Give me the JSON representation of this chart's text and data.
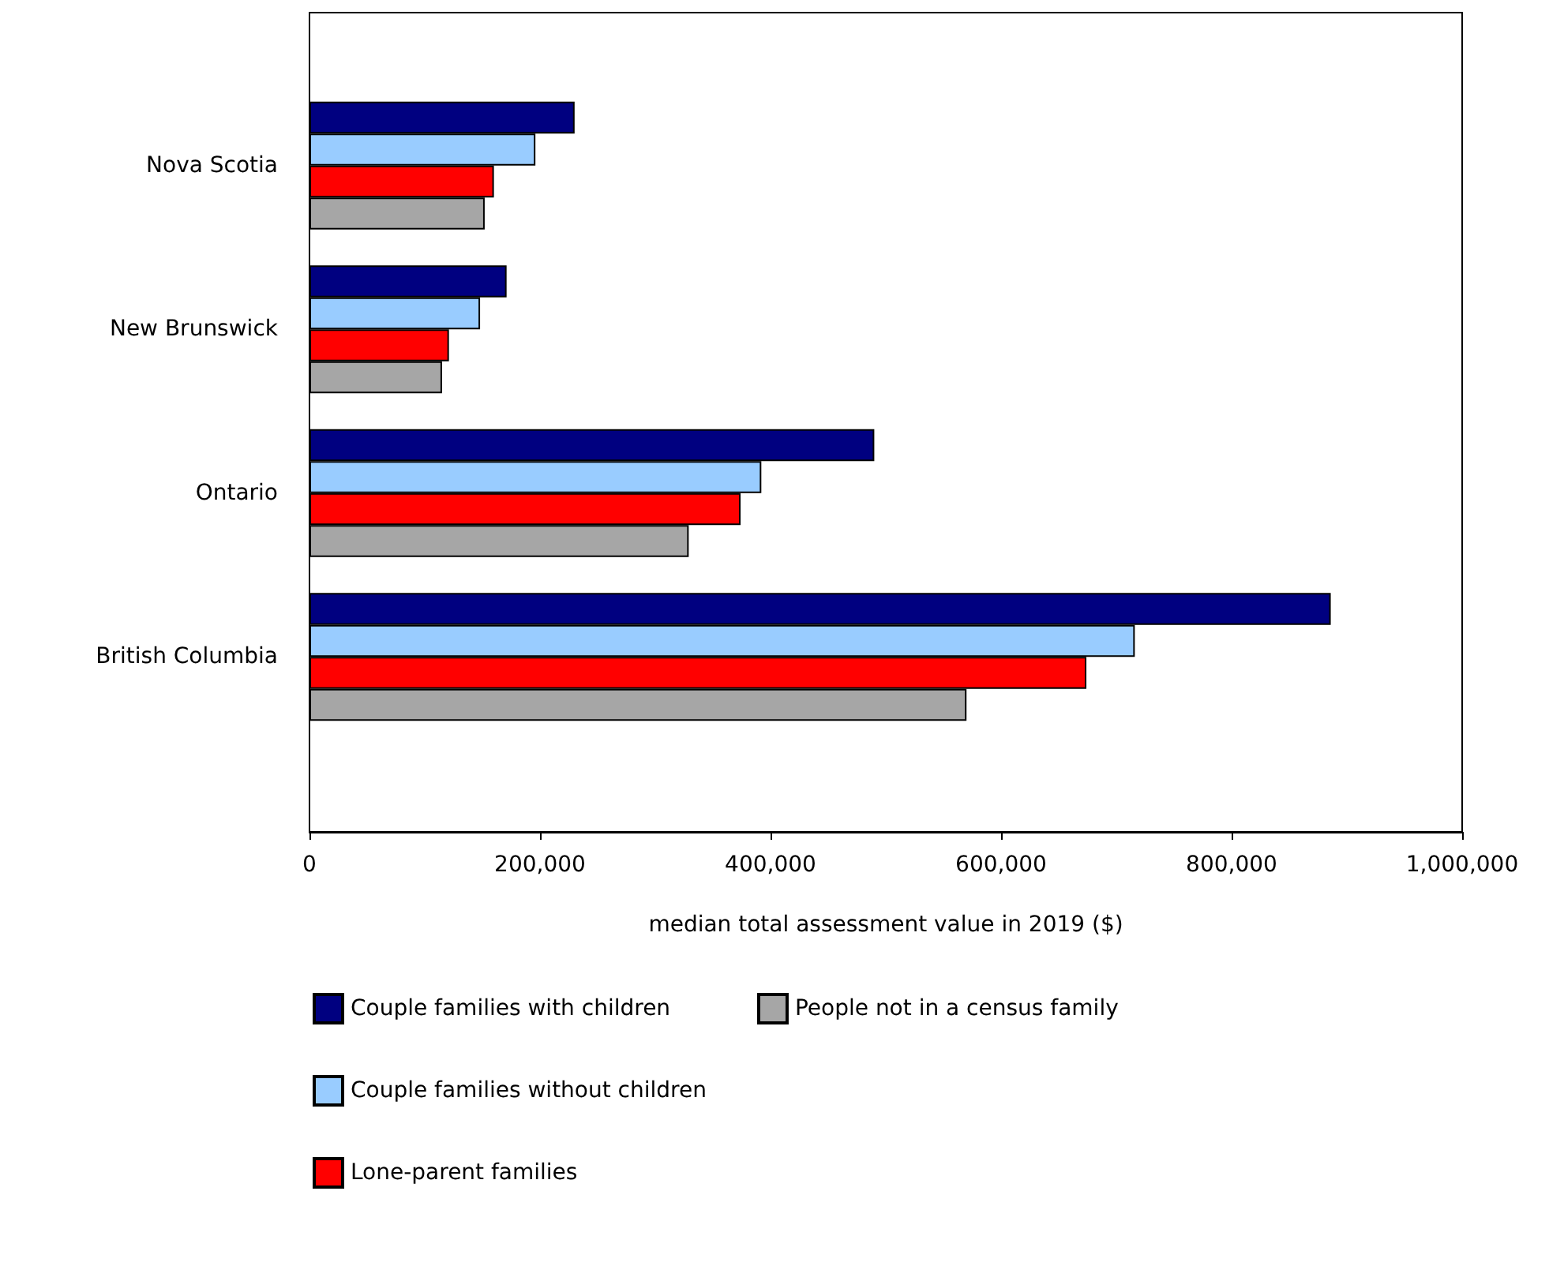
{
  "chart_data": {
    "type": "bar",
    "orientation": "horizontal",
    "xlabel": "median total assessment value in 2019 ($)",
    "categories": [
      "Nova Scotia",
      "New Brunswick",
      "Ontario",
      "British Columbia"
    ],
    "series": [
      {
        "name": "Couple families with children",
        "color": "#000080",
        "values": [
          230000,
          171000,
          490000,
          886000
        ]
      },
      {
        "name": "Couple families without children",
        "color": "#99ccff",
        "values": [
          196000,
          148000,
          392000,
          716000
        ]
      },
      {
        "name": "Lone-parent families",
        "color": "#ff0000",
        "values": [
          160000,
          121000,
          374000,
          674000
        ]
      },
      {
        "name": "People not in a census family",
        "color": "#a6a6a6",
        "values": [
          152000,
          115000,
          329000,
          570000
        ]
      }
    ],
    "xlim": [
      0,
      1000000
    ],
    "xticks": [
      0,
      {
        "value": 200000,
        "label": "200,000"
      },
      {
        "value": 400000,
        "label": "400,000"
      },
      {
        "value": 600000,
        "label": "600,000"
      },
      {
        "value": 800000,
        "label": "800,000"
      },
      {
        "value": 1000000,
        "label": "1,000,000"
      }
    ],
    "grid": false,
    "legend": "bottom"
  }
}
